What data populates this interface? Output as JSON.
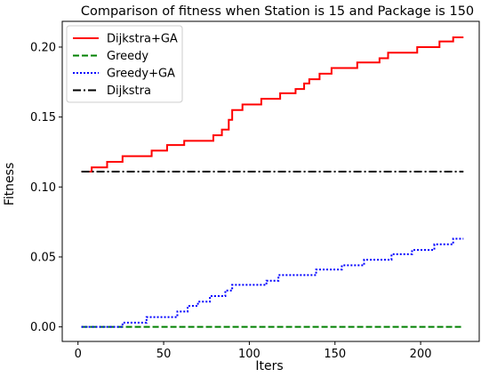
{
  "chart_data": {
    "type": "line",
    "title": "Comparison of fitness when Station is 15 and Package is 150",
    "xlabel": "Iters",
    "ylabel": "Fitness",
    "xlim": [
      -9.2,
      234.2
    ],
    "ylim": [
      -0.0104,
      0.2184
    ],
    "xticks": [
      0,
      50,
      100,
      150,
      200
    ],
    "yticks": [
      0.0,
      0.05,
      0.1,
      0.15,
      0.2
    ],
    "ytick_labels": [
      "0.00",
      "0.05",
      "0.10",
      "0.15",
      "0.20"
    ],
    "legend_position": "upper left",
    "grid": false,
    "series": [
      {
        "name": "Dijkstra+GA",
        "color": "#ff0000",
        "style": "solid",
        "step": true,
        "points": [
          [
            2,
            0.111
          ],
          [
            8,
            0.114
          ],
          [
            17,
            0.118
          ],
          [
            26,
            0.122
          ],
          [
            43,
            0.126
          ],
          [
            52,
            0.13
          ],
          [
            62,
            0.133
          ],
          [
            79,
            0.137
          ],
          [
            84,
            0.141
          ],
          [
            88,
            0.148
          ],
          [
            90,
            0.155
          ],
          [
            96,
            0.159
          ],
          [
            107,
            0.163
          ],
          [
            118,
            0.167
          ],
          [
            127,
            0.17
          ],
          [
            132,
            0.174
          ],
          [
            135,
            0.177
          ],
          [
            141,
            0.181
          ],
          [
            148,
            0.185
          ],
          [
            163,
            0.189
          ],
          [
            176,
            0.192
          ],
          [
            181,
            0.196
          ],
          [
            198,
            0.2
          ],
          [
            211,
            0.204
          ],
          [
            219,
            0.207
          ],
          [
            225,
            0.207
          ]
        ]
      },
      {
        "name": "Greedy",
        "color": "#008000",
        "style": "dashed",
        "step": false,
        "points": [
          [
            2,
            0.0
          ],
          [
            225,
            0.0
          ]
        ]
      },
      {
        "name": "Greedy+GA",
        "color": "#0000ff",
        "style": "dotted",
        "step": true,
        "points": [
          [
            2,
            0.0
          ],
          [
            26,
            0.003
          ],
          [
            40,
            0.007
          ],
          [
            58,
            0.011
          ],
          [
            64,
            0.015
          ],
          [
            70,
            0.018
          ],
          [
            77,
            0.022
          ],
          [
            86,
            0.026
          ],
          [
            90,
            0.03
          ],
          [
            110,
            0.033
          ],
          [
            117,
            0.037
          ],
          [
            139,
            0.041
          ],
          [
            154,
            0.044
          ],
          [
            167,
            0.048
          ],
          [
            183,
            0.052
          ],
          [
            195,
            0.055
          ],
          [
            208,
            0.059
          ],
          [
            219,
            0.063
          ],
          [
            225,
            0.063
          ]
        ]
      },
      {
        "name": "Dijkstra",
        "color": "#000000",
        "style": "dashdot",
        "step": false,
        "points": [
          [
            2,
            0.111
          ],
          [
            225,
            0.111
          ]
        ]
      }
    ]
  }
}
